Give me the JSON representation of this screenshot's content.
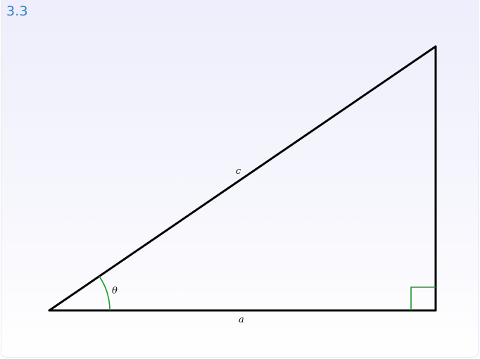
{
  "problem": {
    "number": "3.3"
  },
  "figure": {
    "labels": {
      "hypotenuse": "c",
      "base": "a",
      "angle": "θ"
    },
    "colors": {
      "triangle_stroke": "#000000",
      "angle_marker": "#1f9a2a",
      "number_text": "#3d7fb8"
    }
  }
}
